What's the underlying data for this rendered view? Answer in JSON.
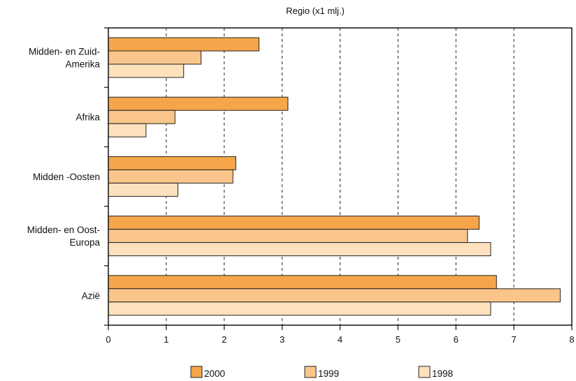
{
  "chart_data": {
    "type": "bar",
    "orientation": "horizontal",
    "title": "Regio (x1 mlj.)",
    "categories": [
      [
        "Midden- en Zuid-",
        "Amerika"
      ],
      [
        "Afrika"
      ],
      [
        "Midden -Oosten"
      ],
      [
        "Midden- en Oost-",
        "Europa"
      ],
      [
        "Azië"
      ]
    ],
    "series": [
      {
        "name": "2000",
        "color": "#f6a54a",
        "values": [
          2.6,
          3.1,
          2.2,
          6.4,
          6.7
        ]
      },
      {
        "name": "1999",
        "color": "#f9c58a",
        "values": [
          1.6,
          1.15,
          2.15,
          6.2,
          7.8
        ]
      },
      {
        "name": "1998",
        "color": "#fde1bd",
        "values": [
          1.3,
          0.65,
          1.2,
          6.6,
          6.6
        ]
      }
    ],
    "xlim": [
      0,
      8
    ],
    "xticks": [
      "0",
      "1",
      "2",
      "3",
      "4",
      "5",
      "6",
      "7",
      "8"
    ],
    "grid": "vertical dashed",
    "legend": "bottom"
  }
}
